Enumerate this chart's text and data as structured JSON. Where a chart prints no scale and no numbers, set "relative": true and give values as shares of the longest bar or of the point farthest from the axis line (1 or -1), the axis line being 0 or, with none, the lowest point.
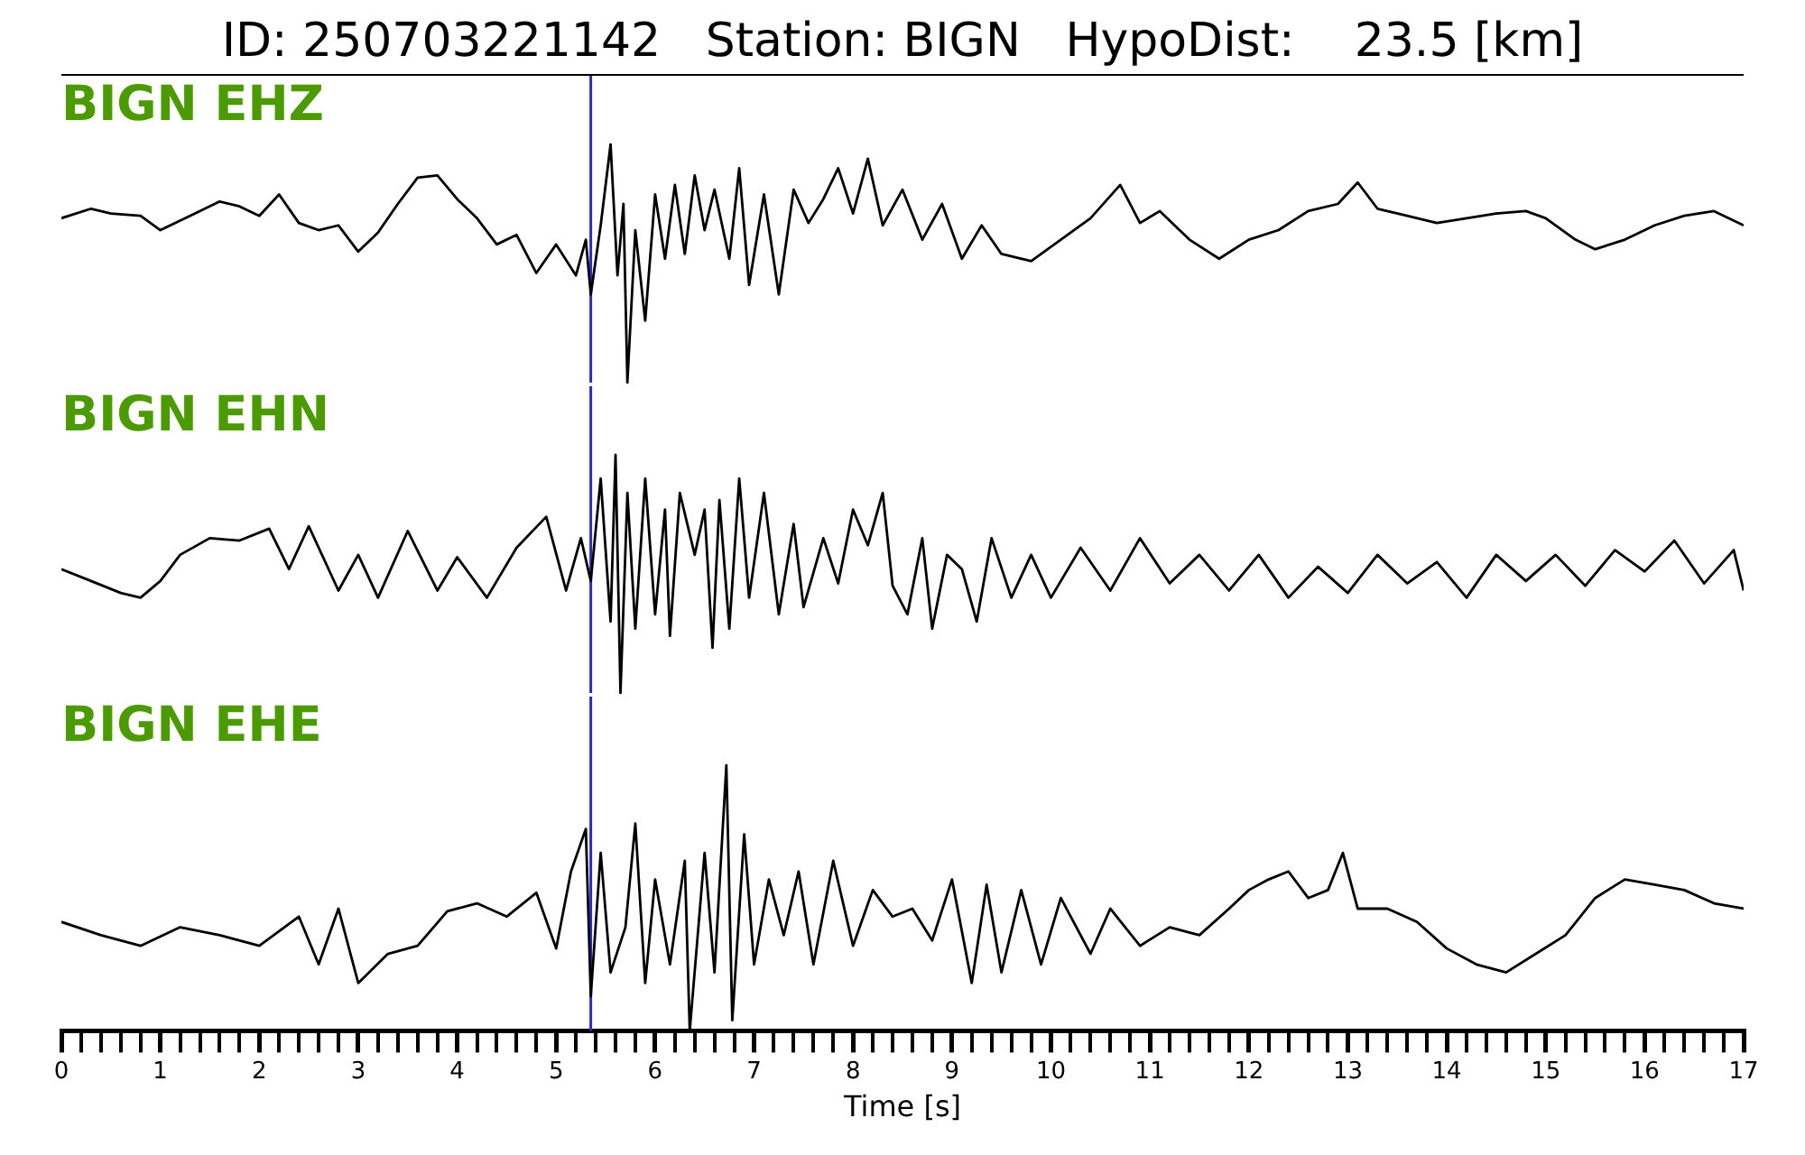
{
  "chart_data": [
    {
      "type": "line",
      "title": "ID: 250703221142   Station: BIGN   HypoDist:    23.5 [km]",
      "relative": true,
      "xlim": [
        0,
        17
      ],
      "tick_labels": false,
      "ref_lines": [
        {
          "axis": "x",
          "value": 5.35,
          "color": "#2b2bc4"
        }
      ],
      "series": [
        {
          "name": "BIGN EHZ",
          "color": "#000000",
          "x": [
            0,
            0.3,
            0.5,
            0.8,
            1.0,
            1.3,
            1.6,
            1.8,
            2.0,
            2.2,
            2.4,
            2.6,
            2.8,
            3.0,
            3.2,
            3.4,
            3.6,
            3.8,
            4.0,
            4.2,
            4.4,
            4.6,
            4.8,
            5.0,
            5.2,
            5.3,
            5.35,
            5.45,
            5.55,
            5.62,
            5.68,
            5.72,
            5.8,
            5.9,
            6.0,
            6.1,
            6.2,
            6.3,
            6.4,
            6.5,
            6.6,
            6.75,
            6.85,
            6.95,
            7.1,
            7.25,
            7.4,
            7.55,
            7.7,
            7.85,
            8.0,
            8.15,
            8.3,
            8.5,
            8.7,
            8.9,
            9.1,
            9.3,
            9.5,
            9.8,
            10.1,
            10.4,
            10.7,
            10.9,
            11.1,
            11.4,
            11.7,
            12.0,
            12.3,
            12.6,
            12.9,
            13.1,
            13.3,
            13.6,
            13.9,
            14.2,
            14.5,
            14.8,
            15.0,
            15.3,
            15.5,
            15.8,
            16.1,
            16.4,
            16.7,
            17.0
          ],
          "values": [
            0.69,
            0.73,
            0.71,
            0.7,
            0.64,
            0.7,
            0.76,
            0.74,
            0.7,
            0.79,
            0.67,
            0.64,
            0.66,
            0.55,
            0.63,
            0.75,
            0.86,
            0.87,
            0.77,
            0.69,
            0.58,
            0.62,
            0.46,
            0.58,
            0.45,
            0.6,
            0.37,
            0.66,
            1,
            0.45,
            0.75,
            0,
            0.64,
            0.26,
            0.79,
            0.52,
            0.83,
            0.54,
            0.87,
            0.64,
            0.81,
            0.52,
            0.9,
            0.41,
            0.79,
            0.37,
            0.81,
            0.67,
            0.77,
            0.9,
            0.71,
            0.94,
            0.66,
            0.81,
            0.6,
            0.75,
            0.52,
            0.66,
            0.54,
            0.51,
            0.6,
            0.69,
            0.83,
            0.67,
            0.72,
            0.6,
            0.52,
            0.6,
            0.64,
            0.72,
            0.75,
            0.84,
            0.73,
            0.7,
            0.67,
            0.69,
            0.71,
            0.72,
            0.69,
            0.6,
            0.56,
            0.6,
            0.66,
            0.7,
            0.72,
            0.66
          ]
        }
      ]
    },
    {
      "type": "line",
      "relative": true,
      "xlim": [
        0,
        17
      ],
      "tick_labels": false,
      "ref_lines": [
        {
          "axis": "x",
          "value": 5.35,
          "color": "#2b2bc4"
        }
      ],
      "series": [
        {
          "name": "BIGN EHN",
          "color": "#000000",
          "x": [
            0,
            0.3,
            0.6,
            0.8,
            1.0,
            1.2,
            1.5,
            1.8,
            2.1,
            2.3,
            2.5,
            2.8,
            3.0,
            3.2,
            3.5,
            3.8,
            4.0,
            4.3,
            4.6,
            4.9,
            5.1,
            5.25,
            5.35,
            5.45,
            5.55,
            5.6,
            5.65,
            5.72,
            5.8,
            5.9,
            6.0,
            6.1,
            6.15,
            6.25,
            6.4,
            6.5,
            6.58,
            6.65,
            6.75,
            6.85,
            6.95,
            7.1,
            7.25,
            7.4,
            7.5,
            7.7,
            7.85,
            8.0,
            8.15,
            8.3,
            8.4,
            8.55,
            8.7,
            8.8,
            8.95,
            9.1,
            9.25,
            9.4,
            9.6,
            9.8,
            10.0,
            10.3,
            10.6,
            10.9,
            11.2,
            11.5,
            11.8,
            12.1,
            12.4,
            12.7,
            13.0,
            13.3,
            13.6,
            13.9,
            14.2,
            14.5,
            14.8,
            15.1,
            15.4,
            15.7,
            16.0,
            16.3,
            16.6,
            16.9,
            17.0
          ],
          "values": [
            0.52,
            0.47,
            0.42,
            0.4,
            0.47,
            0.58,
            0.65,
            0.64,
            0.69,
            0.52,
            0.7,
            0.43,
            0.58,
            0.4,
            0.68,
            0.43,
            0.57,
            0.4,
            0.61,
            0.74,
            0.43,
            0.65,
            0.47,
            0.9,
            0.3,
            1,
            0,
            0.84,
            0.27,
            0.9,
            0.33,
            0.77,
            0.24,
            0.84,
            0.58,
            0.77,
            0.19,
            0.81,
            0.27,
            0.9,
            0.4,
            0.84,
            0.33,
            0.71,
            0.36,
            0.65,
            0.46,
            0.77,
            0.62,
            0.84,
            0.45,
            0.33,
            0.65,
            0.27,
            0.58,
            0.52,
            0.3,
            0.65,
            0.4,
            0.58,
            0.4,
            0.61,
            0.43,
            0.65,
            0.46,
            0.58,
            0.43,
            0.58,
            0.4,
            0.53,
            0.42,
            0.58,
            0.46,
            0.55,
            0.4,
            0.58,
            0.47,
            0.58,
            0.45,
            0.6,
            0.51,
            0.64,
            0.46,
            0.6,
            0.43
          ]
        }
      ]
    },
    {
      "type": "line",
      "xlabel": "Time [s]",
      "relative": true,
      "xlim": [
        0,
        17
      ],
      "tick_labels": "x",
      "xticks": [
        0,
        {
          "value": 0.2,
          "label": null
        },
        {
          "value": 0.4,
          "label": null
        },
        {
          "value": 0.6,
          "label": null
        },
        {
          "value": 0.8,
          "label": null
        },
        1,
        {
          "value": 1.2,
          "label": null
        },
        {
          "value": 1.4,
          "label": null
        },
        {
          "value": 1.6,
          "label": null
        },
        {
          "value": 1.8,
          "label": null
        },
        2,
        {
          "value": 2.2,
          "label": null
        },
        {
          "value": 2.4,
          "label": null
        },
        {
          "value": 2.6,
          "label": null
        },
        {
          "value": 2.8,
          "label": null
        },
        3,
        {
          "value": 3.2,
          "label": null
        },
        {
          "value": 3.4,
          "label": null
        },
        {
          "value": 3.6,
          "label": null
        },
        {
          "value": 3.8,
          "label": null
        },
        4,
        {
          "value": 4.2,
          "label": null
        },
        {
          "value": 4.4,
          "label": null
        },
        {
          "value": 4.6,
          "label": null
        },
        {
          "value": 4.8,
          "label": null
        },
        5,
        {
          "value": 5.2,
          "label": null
        },
        {
          "value": 5.4,
          "label": null
        },
        {
          "value": 5.6,
          "label": null
        },
        {
          "value": 5.8,
          "label": null
        },
        6,
        {
          "value": 6.2,
          "label": null
        },
        {
          "value": 6.4,
          "label": null
        },
        {
          "value": 6.6,
          "label": null
        },
        {
          "value": 6.8,
          "label": null
        },
        7,
        {
          "value": 7.2,
          "label": null
        },
        {
          "value": 7.4,
          "label": null
        },
        {
          "value": 7.6,
          "label": null
        },
        {
          "value": 7.8,
          "label": null
        },
        8,
        {
          "value": 8.2,
          "label": null
        },
        {
          "value": 8.4,
          "label": null
        },
        {
          "value": 8.6,
          "label": null
        },
        {
          "value": 8.8,
          "label": null
        },
        9,
        {
          "value": 9.2,
          "label": null
        },
        {
          "value": 9.4,
          "label": null
        },
        {
          "value": 9.6,
          "label": null
        },
        {
          "value": 9.8,
          "label": null
        },
        10,
        {
          "value": 10.2,
          "label": null
        },
        {
          "value": 10.4,
          "label": null
        },
        {
          "value": 10.6,
          "label": null
        },
        {
          "value": 10.8,
          "label": null
        },
        11,
        {
          "value": 11.2,
          "label": null
        },
        {
          "value": 11.4,
          "label": null
        },
        {
          "value": 11.6,
          "label": null
        },
        {
          "value": 11.8,
          "label": null
        },
        12,
        {
          "value": 12.2,
          "label": null
        },
        {
          "value": 12.4,
          "label": null
        },
        {
          "value": 12.6,
          "label": null
        },
        {
          "value": 12.8,
          "label": null
        },
        13,
        {
          "value": 13.2,
          "label": null
        },
        {
          "value": 13.4,
          "label": null
        },
        {
          "value": 13.6,
          "label": null
        },
        {
          "value": 13.8,
          "label": null
        },
        14,
        {
          "value": 14.2,
          "label": null
        },
        {
          "value": 14.4,
          "label": null
        },
        {
          "value": 14.6,
          "label": null
        },
        {
          "value": 14.8,
          "label": null
        },
        15,
        {
          "value": 15.2,
          "label": null
        },
        {
          "value": 15.4,
          "label": null
        },
        {
          "value": 15.6,
          "label": null
        },
        {
          "value": 15.8,
          "label": null
        },
        16,
        {
          "value": 16.2,
          "label": null
        },
        {
          "value": 16.4,
          "label": null
        },
        {
          "value": 16.6,
          "label": null
        },
        {
          "value": 16.8,
          "label": null
        },
        17
      ],
      "ref_lines": [
        {
          "axis": "x",
          "value": 5.35,
          "color": "#2b2bc4"
        }
      ],
      "series": [
        {
          "name": "BIGN EHE",
          "color": "#000000",
          "x": [
            0,
            0.4,
            0.8,
            1.2,
            1.6,
            2.0,
            2.4,
            2.6,
            2.8,
            3.0,
            3.3,
            3.6,
            3.9,
            4.2,
            4.5,
            4.8,
            5.0,
            5.15,
            5.3,
            5.35,
            5.45,
            5.55,
            5.7,
            5.8,
            5.9,
            6.0,
            6.15,
            6.3,
            6.35,
            6.5,
            6.6,
            6.72,
            6.78,
            6.9,
            7.0,
            7.15,
            7.3,
            7.45,
            7.6,
            7.8,
            8.0,
            8.2,
            8.4,
            8.6,
            8.8,
            9.0,
            9.2,
            9.35,
            9.5,
            9.7,
            9.9,
            10.1,
            10.4,
            10.6,
            10.9,
            11.2,
            11.5,
            11.8,
            12.0,
            12.2,
            12.4,
            12.6,
            12.8,
            12.95,
            13.1,
            13.4,
            13.7,
            14.0,
            14.3,
            14.6,
            14.9,
            15.2,
            15.5,
            15.8,
            16.1,
            16.4,
            16.7,
            17.0
          ],
          "values": [
            0.41,
            0.36,
            0.32,
            0.39,
            0.36,
            0.32,
            0.43,
            0.25,
            0.46,
            0.18,
            0.29,
            0.32,
            0.45,
            0.48,
            0.43,
            0.52,
            0.31,
            0.6,
            0.76,
            0.13,
            0.67,
            0.22,
            0.39,
            0.78,
            0.18,
            0.57,
            0.25,
            0.64,
            0,
            0.67,
            0.22,
            1,
            0.04,
            0.74,
            0.25,
            0.57,
            0.36,
            0.6,
            0.25,
            0.64,
            0.32,
            0.53,
            0.43,
            0.46,
            0.34,
            0.57,
            0.18,
            0.55,
            0.22,
            0.53,
            0.25,
            0.5,
            0.29,
            0.46,
            0.32,
            0.39,
            0.36,
            0.46,
            0.53,
            0.57,
            0.6,
            0.5,
            0.53,
            0.67,
            0.46,
            0.46,
            0.41,
            0.31,
            0.25,
            0.22,
            0.29,
            0.36,
            0.5,
            0.57,
            0.55,
            0.53,
            0.48,
            0.46
          ]
        }
      ]
    }
  ]
}
